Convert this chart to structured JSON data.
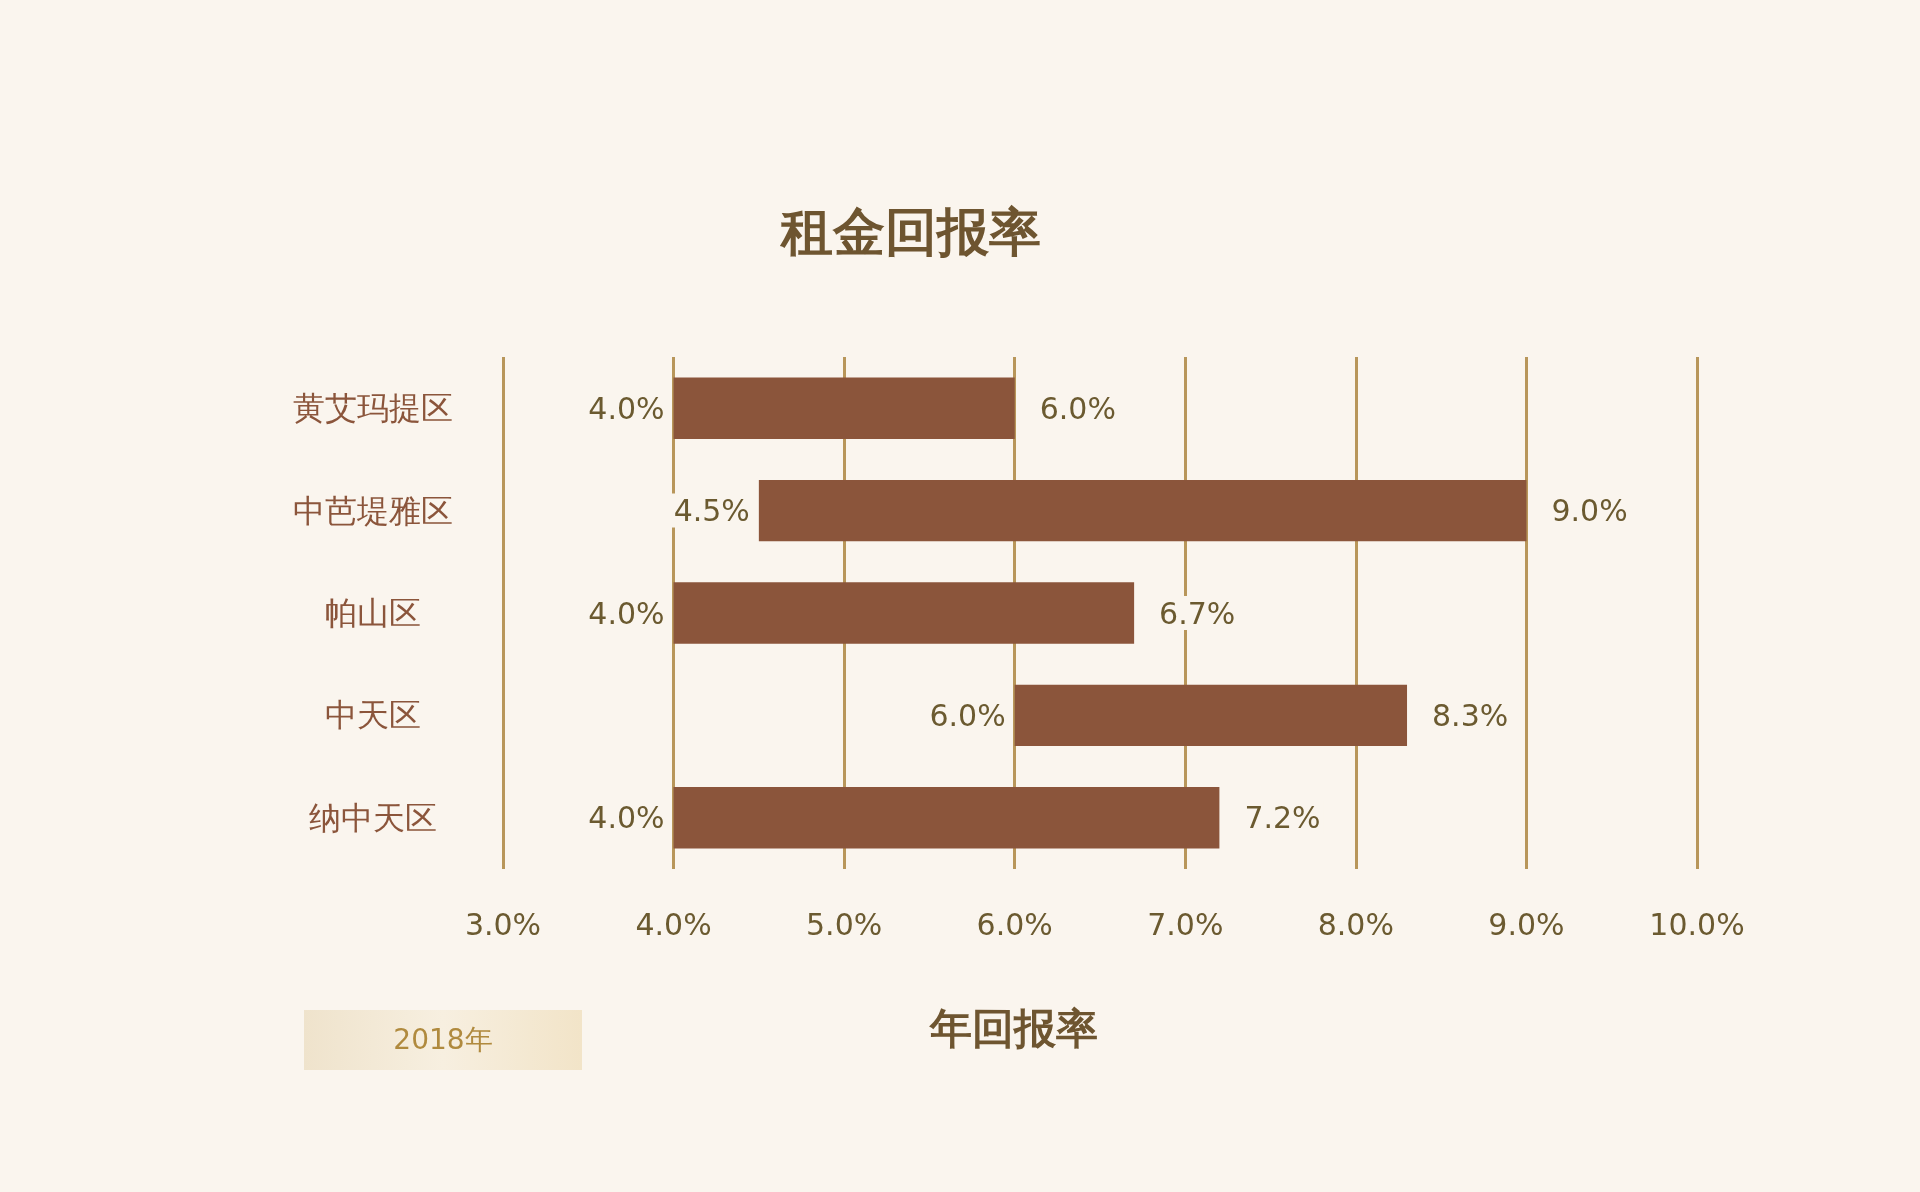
{
  "chart_data": {
    "type": "bar",
    "orientation": "horizontal",
    "title": "租金回报率",
    "xlabel": "年回报率",
    "categories": [
      "黄艾玛提区",
      "中芭堤雅区",
      "帕山区",
      "中天区",
      "纳中天区"
    ],
    "base": [
      4.0,
      4.5,
      4.0,
      6.0,
      4.0
    ],
    "values": [
      2.0,
      4.5,
      2.7,
      2.3,
      3.2
    ],
    "value_labels": [
      "6.0%",
      "9.0%",
      "6.7%",
      "8.3%",
      "7.2%"
    ],
    "color": "#8b553b",
    "xlim": [
      3,
      10
    ],
    "xticks": [
      {
        "value": 3,
        "label": "3.0%"
      },
      {
        "value": 4,
        "label": "4.0%"
      },
      {
        "value": 5,
        "label": "5.0%"
      },
      {
        "value": 6,
        "label": "6.0%"
      },
      {
        "value": 7,
        "label": "7.0%"
      },
      {
        "value": 8,
        "label": "8.0%"
      },
      {
        "value": 9,
        "label": "9.0%"
      },
      {
        "value": 10,
        "label": "10.0%"
      }
    ],
    "grid": "x",
    "annotations": [
      {
        "text": "4.0%",
        "x": 4.0,
        "y": "黄艾玛提区"
      },
      {
        "text": "4.5%",
        "x": 4.5,
        "y": "中芭堤雅区"
      },
      {
        "text": "4.0%",
        "x": 4.0,
        "y": "帕山区"
      },
      {
        "text": "6.0%",
        "x": 6.0,
        "y": "中天区"
      },
      {
        "text": "4.0%",
        "x": 4.0,
        "y": "纳中天区"
      },
      "2018年"
    ]
  }
}
